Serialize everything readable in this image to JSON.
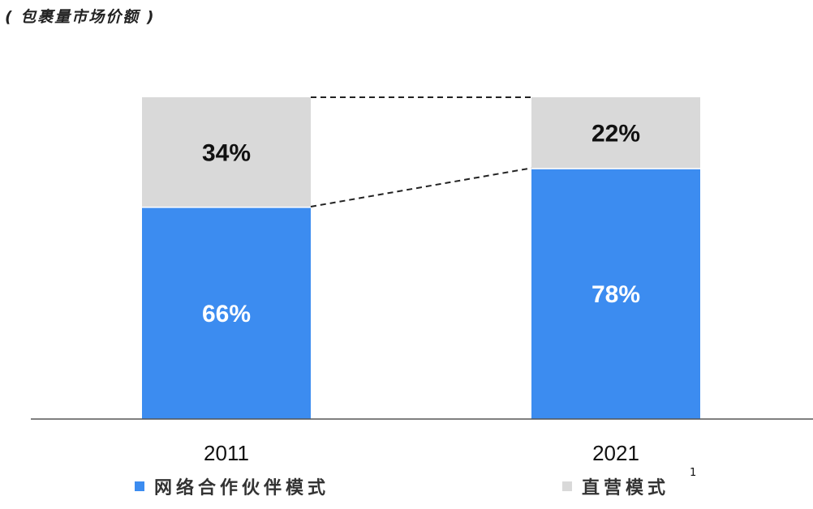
{
  "subtitle": "( 包裹量市场价额 )",
  "colors": {
    "partner": "#3c8cf0",
    "direct": "#d9d9d9",
    "axis": "#555555",
    "connector": "#222222"
  },
  "legend": {
    "partner_label": "网络合作伙伴模式",
    "direct_label": "直营模式",
    "footnote": "1"
  },
  "chart_data": {
    "type": "bar",
    "stacked": true,
    "normalized_percent": true,
    "categories": [
      "2011",
      "2021"
    ],
    "series": [
      {
        "name": "网络合作伙伴模式",
        "values": [
          66,
          78
        ],
        "labels": [
          "66%",
          "78%"
        ]
      },
      {
        "name": "直营模式",
        "values": [
          34,
          22
        ],
        "labels": [
          "34%",
          "22%"
        ]
      }
    ],
    "ylim": [
      0,
      100
    ],
    "title": "",
    "xlabel": "",
    "ylabel": "",
    "grid": false,
    "legend_position": "bottom"
  }
}
